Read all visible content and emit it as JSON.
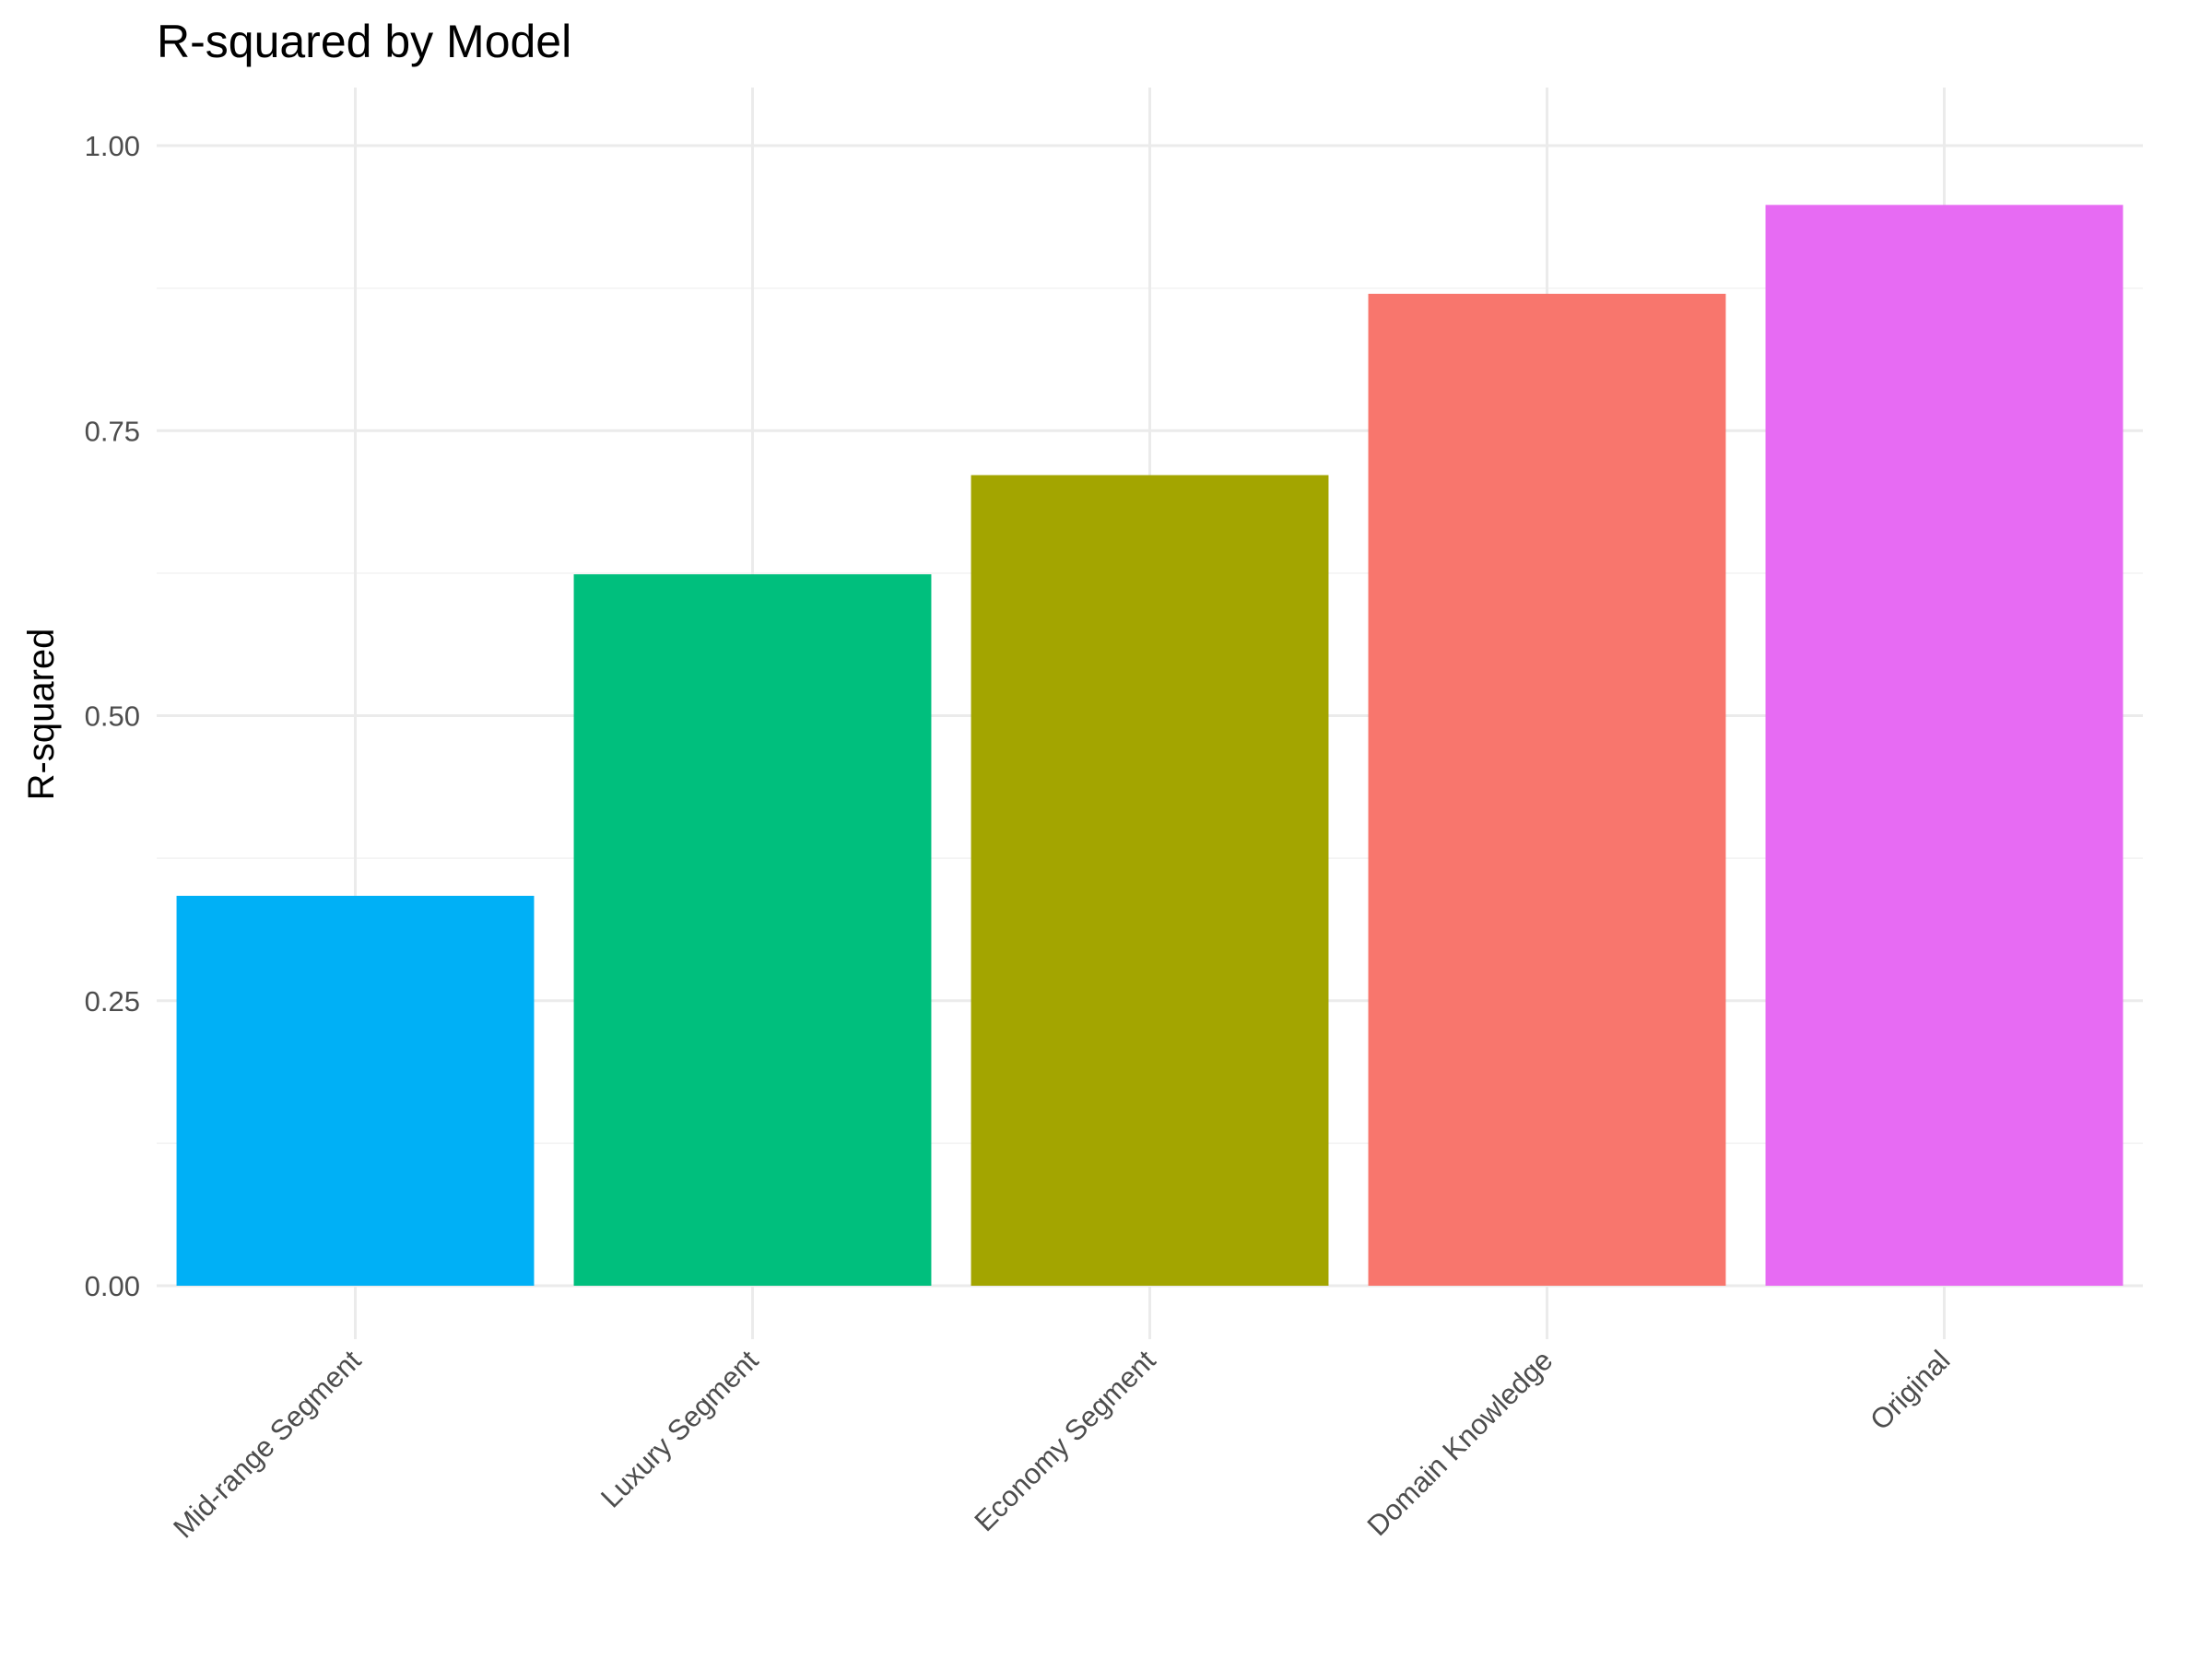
{
  "chart_data": {
    "type": "bar",
    "title": "R-squared by Model",
    "xlabel": "",
    "ylabel": "R-squared",
    "categories": [
      "Mid-range Segment",
      "Luxury Segment",
      "Economy Segment",
      "Domain Knowledge",
      "Original"
    ],
    "values": [
      0.342,
      0.624,
      0.711,
      0.87,
      0.948
    ],
    "colors": [
      "#00B0F6",
      "#00BF7D",
      "#A3A500",
      "#F8766D",
      "#E76BF3"
    ],
    "ylim": [
      0,
      1.0
    ],
    "yticks": [
      0.0,
      0.25,
      0.5,
      0.75,
      1.0
    ],
    "ytick_labels": [
      "0.00",
      "0.25",
      "0.50",
      "0.75",
      "1.00"
    ],
    "grid": true,
    "legend": "none"
  }
}
